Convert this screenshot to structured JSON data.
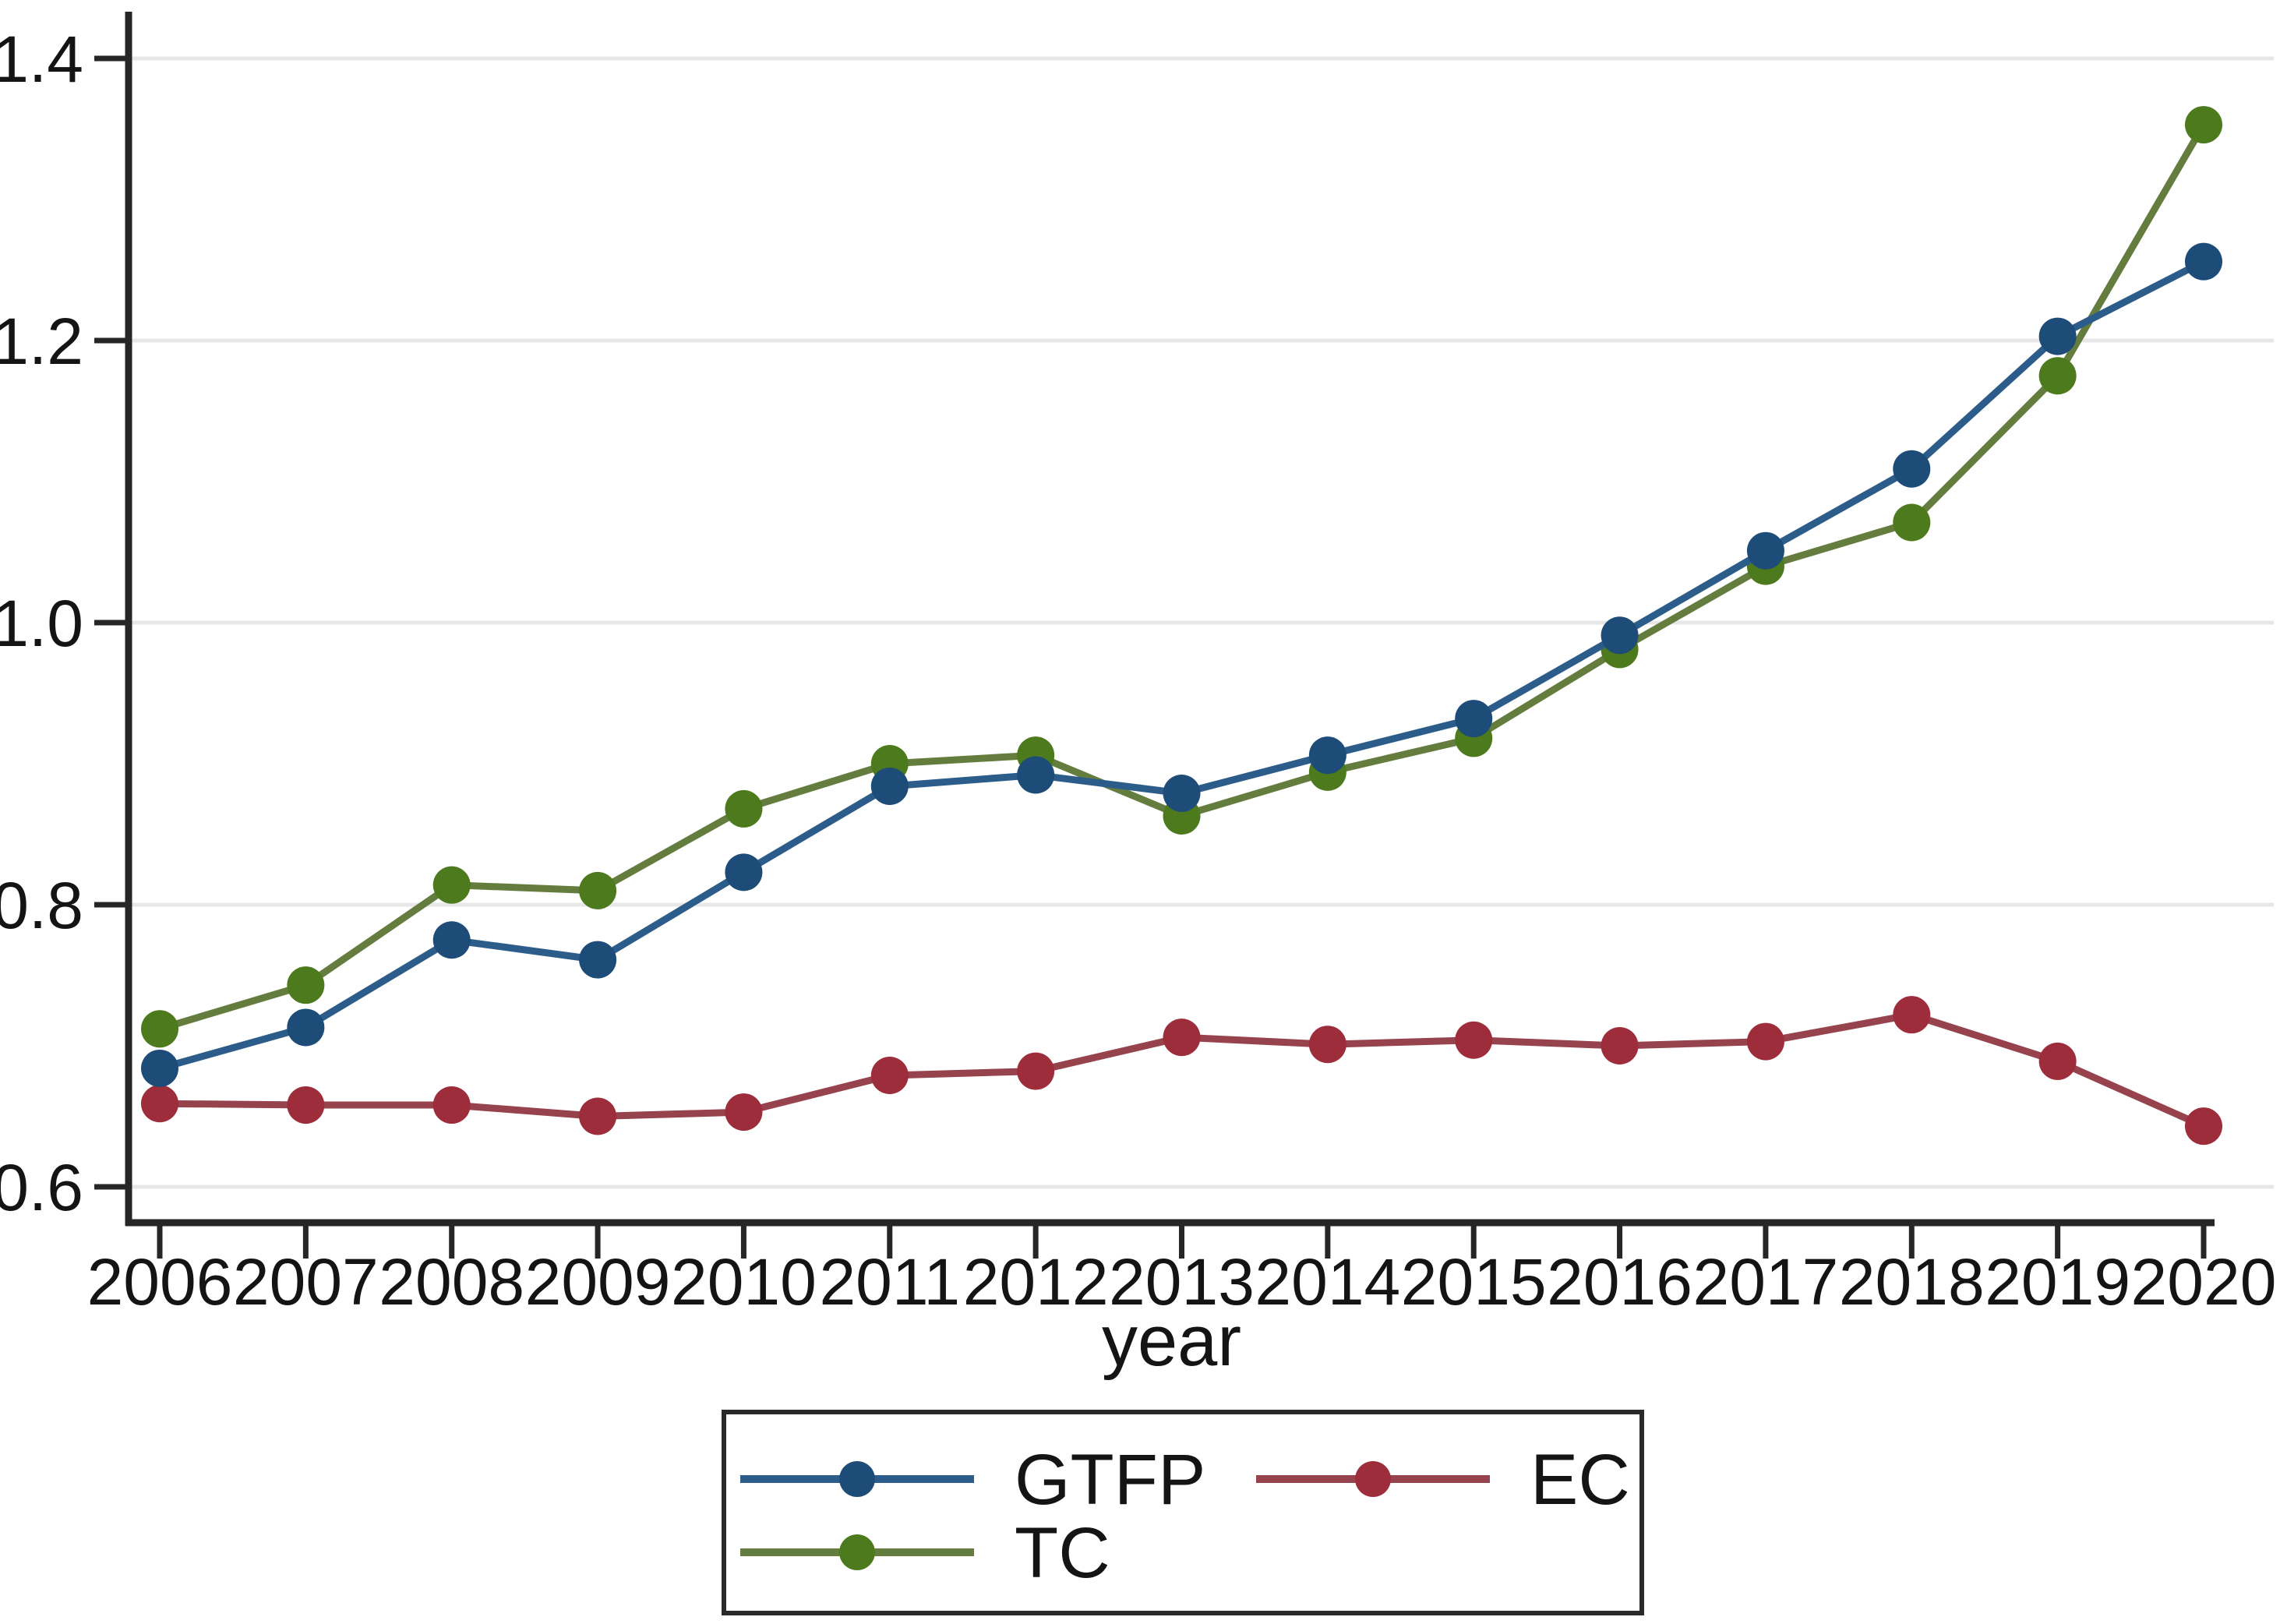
{
  "chart_data": {
    "type": "line",
    "title": "",
    "xlabel": "year",
    "ylabel": "",
    "x": [
      2006,
      2007,
      2008,
      2009,
      2010,
      2011,
      2012,
      2013,
      2014,
      2015,
      2016,
      2017,
      2018,
      2019,
      2020
    ],
    "x_tick_labels": [
      "2006",
      "2007",
      "2008",
      "2009",
      "2010",
      "2011",
      "2012",
      "2013",
      "2014",
      "2015",
      "2016",
      "2017",
      "2018",
      "2019",
      "2020"
    ],
    "y_ticks": [
      0.6,
      0.8,
      1.0,
      1.2,
      1.4
    ],
    "y_tick_labels": [
      "0.6",
      "0.8",
      "1.0",
      "1.2",
      "1.4"
    ],
    "ylim": [
      0.575,
      1.43
    ],
    "grid": true,
    "legend_position": "bottom",
    "axis_color": "#262626",
    "grid_color": "#e7e7e7",
    "series": [
      {
        "name": "GTFP",
        "line_color": "#2c5c8a",
        "marker_color": "#1e4c78",
        "values": [
          0.684,
          0.713,
          0.775,
          0.761,
          0.823,
          0.884,
          0.892,
          0.879,
          0.906,
          0.932,
          0.991,
          1.051,
          1.109,
          1.203,
          1.256
        ]
      },
      {
        "name": "EC",
        "line_color": "#96434d",
        "marker_color": "#9e2d3b",
        "values": [
          0.659,
          0.658,
          0.658,
          0.65,
          0.653,
          0.679,
          0.682,
          0.706,
          0.701,
          0.704,
          0.7,
          0.703,
          0.722,
          0.689,
          0.643
        ]
      },
      {
        "name": "TC",
        "line_color": "#647d3e",
        "marker_color": "#4c7a1c",
        "values": [
          0.712,
          0.743,
          0.814,
          0.81,
          0.868,
          0.9,
          0.906,
          0.863,
          0.894,
          0.918,
          0.981,
          1.04,
          1.071,
          1.175,
          1.353
        ]
      }
    ]
  },
  "legend": {
    "entries": [
      {
        "label": "GTFP",
        "series": "GTFP"
      },
      {
        "label": "EC",
        "series": "EC"
      },
      {
        "label": "TC",
        "series": "TC"
      }
    ]
  }
}
